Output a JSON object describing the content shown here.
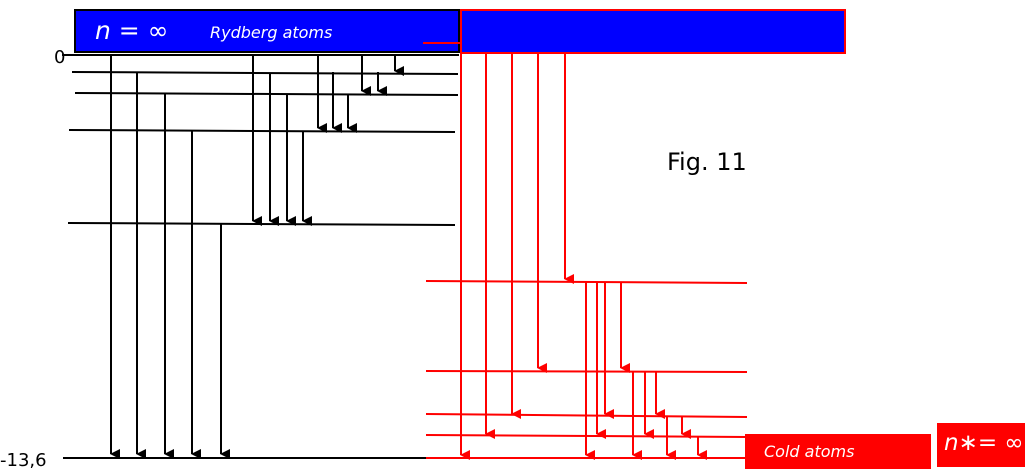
{
  "colors": {
    "black": "#000000",
    "red": "#ff0000",
    "blue": "#0000ff",
    "white": "#ffffff"
  },
  "labels": {
    "rydberg_n": "n = ∞",
    "rydberg_title": "Rydberg atoms",
    "cold_title": "Cold atoms",
    "cold_n": "n∗= ∞",
    "figure": "Fig. 11",
    "energy_top": "0",
    "energy_bottom": "-13,6"
  }
}
